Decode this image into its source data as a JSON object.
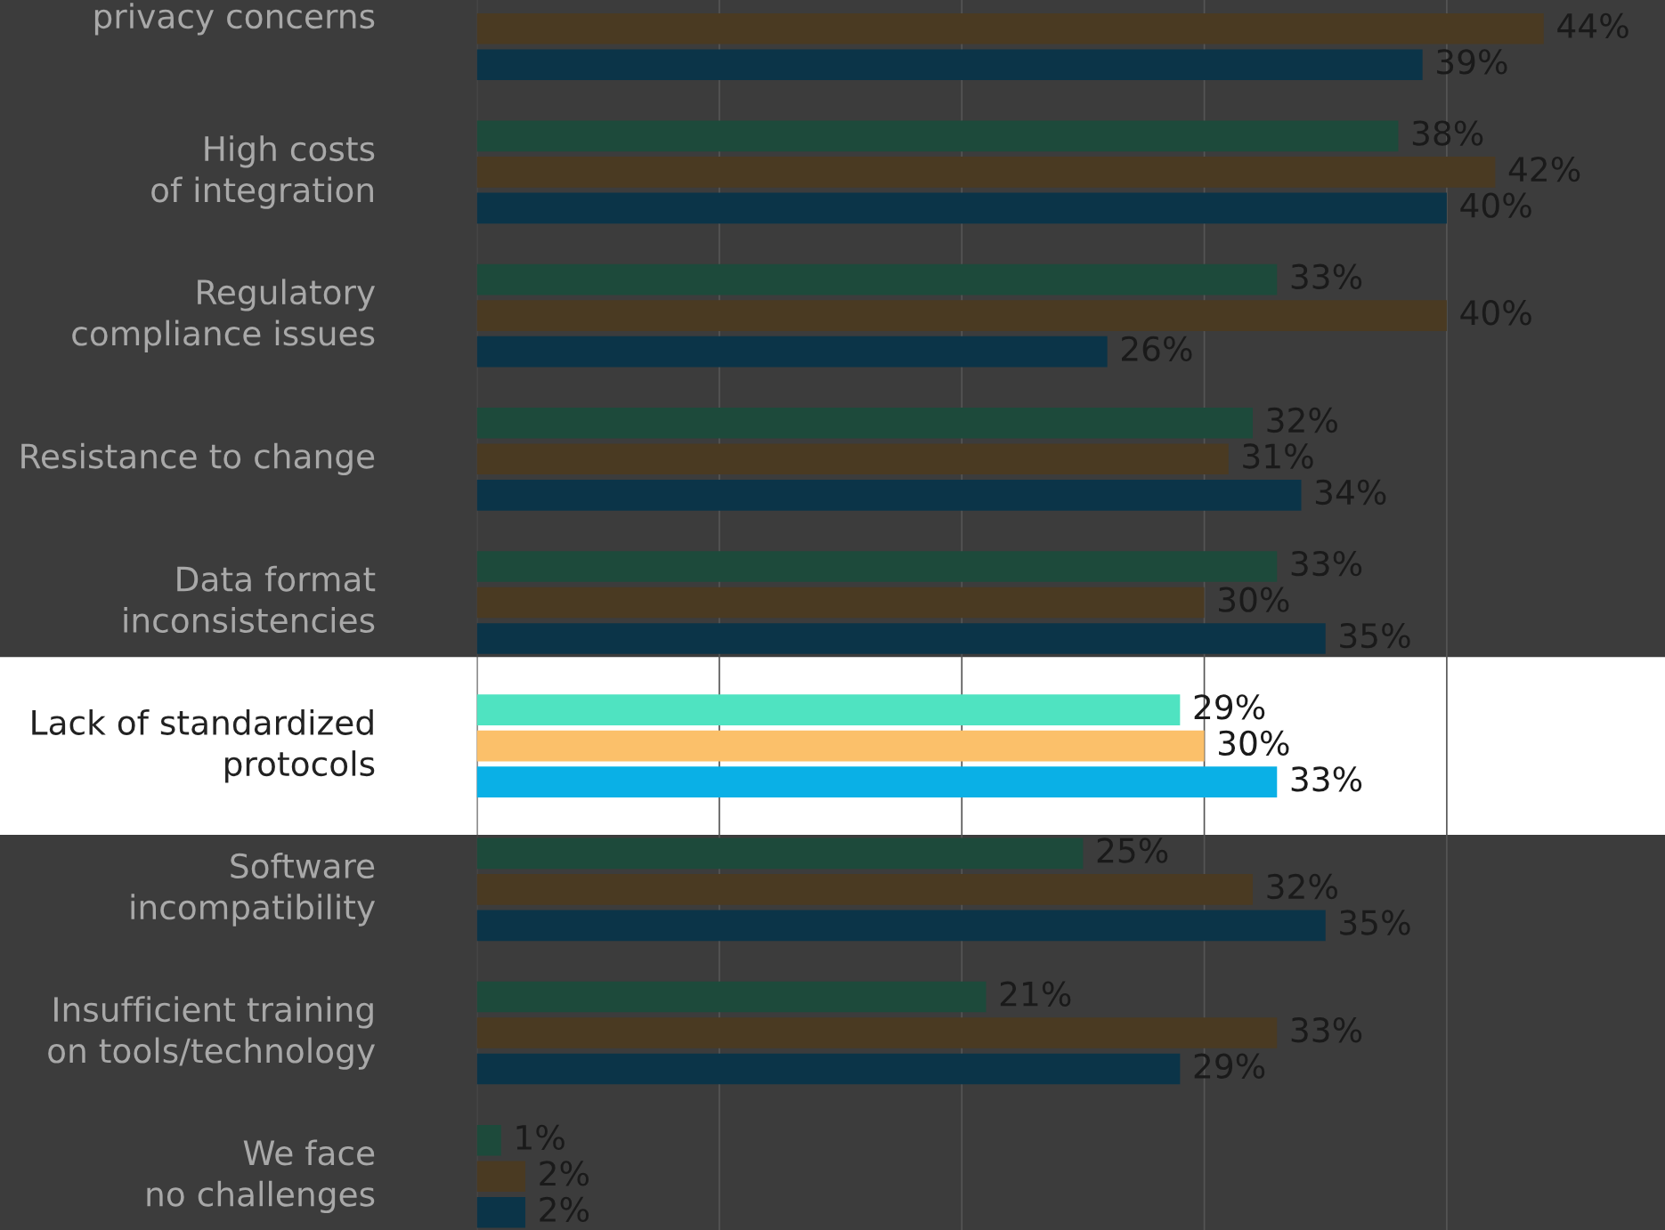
{
  "chart_data": {
    "type": "bar",
    "orientation": "horizontal",
    "categories": [
      "privacy concerns",
      "High costs\nof integration",
      "Regulatory\ncompliance issues",
      "Resistance to change",
      "Data format\ninconsistencies",
      "Lack of standardized\nprotocols",
      "Software\nincompatibility",
      "Insufficient training\non tools/technology",
      "We face\nno challenges"
    ],
    "series": [
      {
        "color": "#1d4a3b",
        "colors": [
          "#1d4a3b",
          "#1d4a3b",
          "#1d4a3b",
          "#1d4a3b",
          "#1d4a3b",
          "#4fe3c1",
          "#1d4a3b",
          "#1d4a3b",
          "#1d4a3b"
        ],
        "values": [
          null,
          38,
          33,
          32,
          33,
          29,
          25,
          21,
          1
        ],
        "value_labels": [
          null,
          "38%",
          "33%",
          "32%",
          "33%",
          "29%",
          "25%",
          "21%",
          "1%"
        ]
      },
      {
        "color": "#4a3a22",
        "colors": [
          "#4a3a22",
          "#4a3a22",
          "#4a3a22",
          "#4a3a22",
          "#4a3a22",
          "#fbc06a",
          "#4a3a22",
          "#4a3a22",
          "#4a3a22"
        ],
        "values": [
          44,
          42,
          40,
          31,
          30,
          30,
          32,
          33,
          2
        ],
        "value_labels": [
          "44%",
          "42%",
          "40%",
          "31%",
          "30%",
          "30%",
          "32%",
          "33%",
          "2%"
        ]
      },
      {
        "color": "#0b3448",
        "colors": [
          "#0b3448",
          "#0b3448",
          "#0b3448",
          "#0b3448",
          "#0b3448",
          "#0ab0e6",
          "#0b3448",
          "#0b3448",
          "#0b3448"
        ],
        "values": [
          39,
          40,
          26,
          34,
          35,
          33,
          35,
          29,
          2
        ],
        "value_labels": [
          "39%",
          "40%",
          "26%",
          "34%",
          "35%",
          "33%",
          "35%",
          "29%",
          "2%"
        ]
      }
    ],
    "xlim": [
      0,
      49
    ],
    "xticks": [
      {
        "value": 10,
        "label": null
      },
      {
        "value": 20,
        "label": null
      },
      {
        "value": 30,
        "label": null
      },
      {
        "value": 40,
        "label": null
      }
    ],
    "grid": "x",
    "tick_labels": "y",
    "legend": false
  }
}
